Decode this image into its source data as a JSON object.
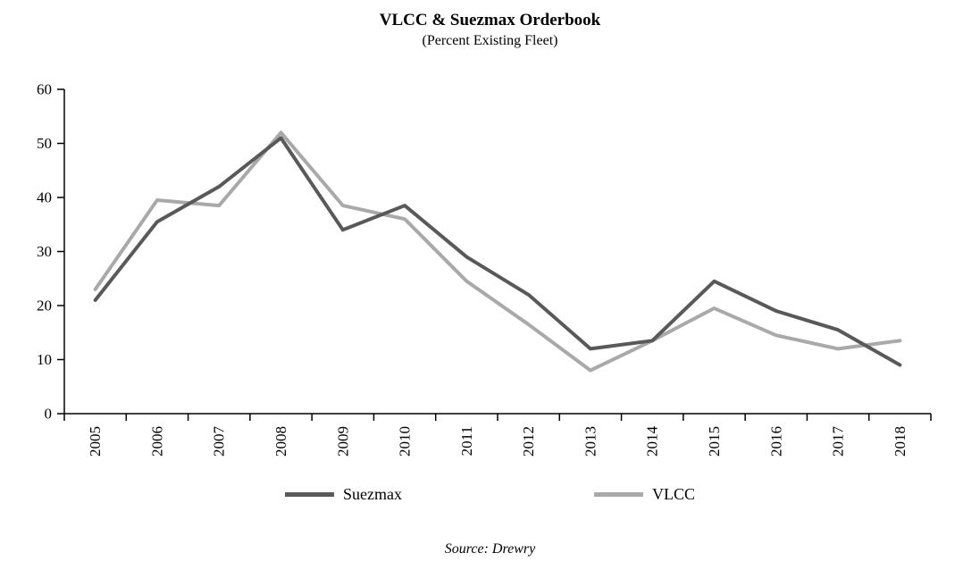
{
  "title": "VLCC & Suezmax Orderbook",
  "subtitle": "(Percent Existing Fleet)",
  "source": "Source: Drewry",
  "colors": {
    "suezmax": "#595959",
    "vlcc": "#a9a9a9",
    "axis": "#000000"
  },
  "chart_data": {
    "type": "line",
    "title": "VLCC & Suezmax Orderbook",
    "subtitle": "(Percent Existing Fleet)",
    "categories": [
      "2005",
      "2006",
      "2007",
      "2008",
      "2009",
      "2010",
      "2011",
      "2012",
      "2013",
      "2014",
      "2015",
      "2016",
      "2017",
      "2018"
    ],
    "series": [
      {
        "name": "Suezmax",
        "color": "#595959",
        "values": [
          21,
          35.5,
          42,
          51,
          34,
          38.5,
          29,
          22,
          12,
          13.5,
          24.5,
          19,
          15.5,
          9
        ]
      },
      {
        "name": "VLCC",
        "color": "#a9a9a9",
        "values": [
          23,
          39.5,
          38.5,
          52,
          38.5,
          36,
          24.5,
          16.5,
          8,
          13.5,
          19.5,
          14.5,
          12,
          13.5
        ]
      }
    ],
    "xlabel": "",
    "ylabel": "",
    "ylim": [
      0,
      60
    ],
    "ytick_step": 10,
    "grid": false,
    "legend_position": "bottom"
  }
}
